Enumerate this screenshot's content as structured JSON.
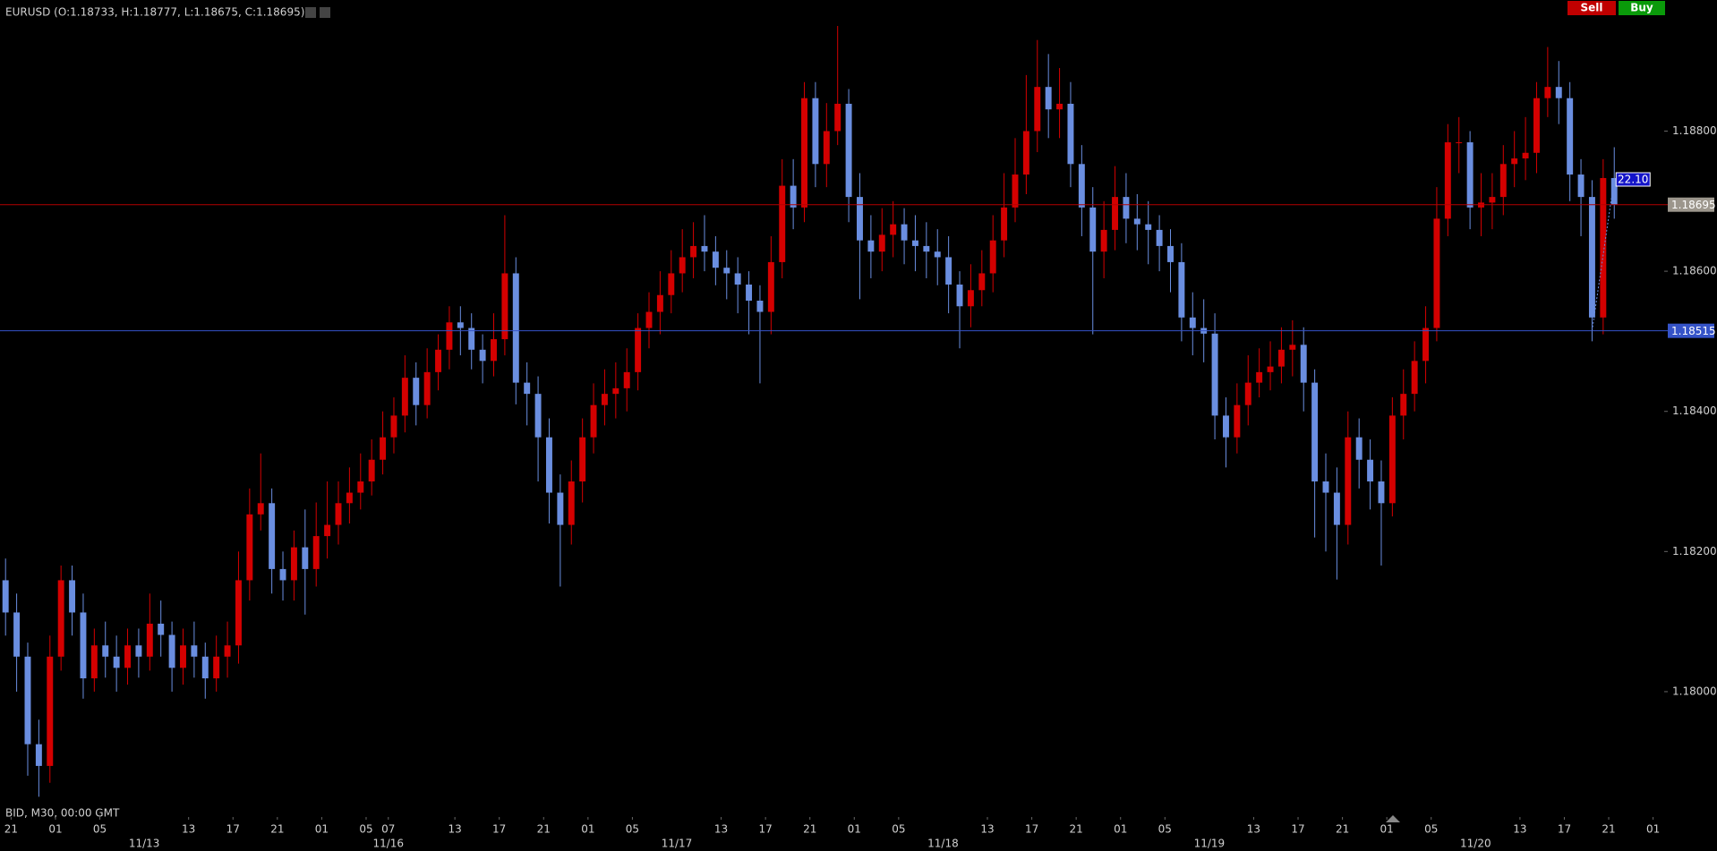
{
  "toolbar": {
    "buttons": [
      "Sell",
      "Buy"
    ]
  },
  "footer": "BID, M30, 00:00 GMT",
  "chart_data": {
    "type": "candlestick",
    "title": "EURUSD (O:1.18733, H:1.18777, L:1.18675, C:1.18695)",
    "up_color": "#d40000",
    "down_color": "#6a8ee0",
    "open": [
      1.18159,
      1.18113,
      1.1805,
      1.17925,
      1.17894,
      1.1805,
      1.18159,
      1.18113,
      1.18019,
      1.18066,
      1.1805,
      1.18034,
      1.18066,
      1.1805,
      1.18097,
      1.18081,
      1.18034,
      1.18066,
      1.1805,
      1.18019,
      1.1805,
      1.18066,
      1.18159,
      1.18253,
      1.18269,
      1.18175,
      1.18159,
      1.18206,
      1.18175,
      1.18222,
      1.18238,
      1.18269,
      1.18284,
      1.183,
      1.18331,
      1.18363,
      1.18394,
      1.18448,
      1.18409,
      1.18456,
      1.18488,
      1.18527,
      1.18519,
      1.18488,
      1.18472,
      1.18503,
      1.18597,
      1.18441,
      1.18425,
      1.18363,
      1.18284,
      1.18238,
      1.183,
      1.18363,
      1.18409,
      1.18425,
      1.18433,
      1.18456,
      1.18519,
      1.18542,
      1.18566,
      1.18597,
      1.1862,
      1.18636,
      1.18628,
      1.18605,
      1.18597,
      1.18581,
      1.18558,
      1.18542,
      1.18613,
      1.18722,
      1.18691,
      1.18847,
      1.18753,
      1.188,
      1.18839,
      1.18706,
      1.18644,
      1.18628,
      1.18652,
      1.18667,
      1.18644,
      1.18636,
      1.18628,
      1.1862,
      1.18581,
      1.1855,
      1.18573,
      1.18597,
      1.18644,
      1.18691,
      1.18738,
      1.188,
      1.18863,
      1.18831,
      1.18839,
      1.18753,
      1.18691,
      1.18628,
      1.18659,
      1.18706,
      1.18675,
      1.18667,
      1.18659,
      1.18636,
      1.18613,
      1.18534,
      1.18519,
      1.18511,
      1.18394,
      1.18363,
      1.18409,
      1.18441,
      1.18456,
      1.18464,
      1.18488,
      1.18495,
      1.18441,
      1.183,
      1.18284,
      1.18238,
      1.18363,
      1.18331,
      1.183,
      1.18269,
      1.18394,
      1.18425,
      1.18472,
      1.18519,
      1.18675,
      1.18784,
      1.18784,
      1.18691,
      1.18698,
      1.18706,
      1.18753,
      1.18761,
      1.18769,
      1.18847,
      1.18863,
      1.18847,
      1.18738,
      1.18706,
      1.18534,
      1.18733
    ],
    "high": [
      1.1819,
      1.1814,
      1.1807,
      1.1796,
      1.1808,
      1.1818,
      1.1818,
      1.1814,
      1.1809,
      1.181,
      1.1808,
      1.1809,
      1.1809,
      1.1814,
      1.1813,
      1.181,
      1.1809,
      1.181,
      1.1807,
      1.1808,
      1.181,
      1.182,
      1.1829,
      1.1834,
      1.1829,
      1.182,
      1.1823,
      1.1826,
      1.1827,
      1.183,
      1.183,
      1.1832,
      1.1834,
      1.1836,
      1.184,
      1.1842,
      1.1848,
      1.1847,
      1.1849,
      1.1851,
      1.1855,
      1.1855,
      1.1854,
      1.1851,
      1.1854,
      1.1868,
      1.1862,
      1.1847,
      1.1845,
      1.1839,
      1.1831,
      1.1833,
      1.1839,
      1.1844,
      1.1846,
      1.1847,
      1.1849,
      1.1854,
      1.1857,
      1.186,
      1.1863,
      1.1866,
      1.1867,
      1.1868,
      1.1865,
      1.1863,
      1.1862,
      1.186,
      1.1858,
      1.1865,
      1.1876,
      1.1876,
      1.1887,
      1.1887,
      1.1884,
      1.1895,
      1.1886,
      1.1874,
      1.1868,
      1.1869,
      1.187,
      1.1869,
      1.1868,
      1.1867,
      1.1866,
      1.1865,
      1.186,
      1.1861,
      1.1863,
      1.1868,
      1.1874,
      1.1879,
      1.1888,
      1.1893,
      1.1891,
      1.1889,
      1.1887,
      1.1878,
      1.1872,
      1.187,
      1.1875,
      1.1874,
      1.1871,
      1.187,
      1.1868,
      1.1866,
      1.1864,
      1.1857,
      1.1856,
      1.1854,
      1.1842,
      1.1844,
      1.1848,
      1.1849,
      1.185,
      1.1852,
      1.1853,
      1.1852,
      1.1846,
      1.1834,
      1.1832,
      1.184,
      1.1839,
      1.1836,
      1.1833,
      1.1842,
      1.1846,
      1.185,
      1.1855,
      1.1872,
      1.1881,
      1.1882,
      1.188,
      1.1874,
      1.1874,
      1.1878,
      1.188,
      1.1882,
      1.1887,
      1.1892,
      1.189,
      1.1887,
      1.1876,
      1.1873,
      1.1876,
      1.18777
    ],
    "low": [
      1.1808,
      1.18,
      1.1788,
      1.1785,
      1.1787,
      1.1803,
      1.1808,
      1.1799,
      1.18,
      1.1802,
      1.18,
      1.1801,
      1.1802,
      1.1803,
      1.1805,
      1.18,
      1.1801,
      1.1802,
      1.1799,
      1.18,
      1.1802,
      1.1804,
      1.1813,
      1.1823,
      1.1814,
      1.1813,
      1.1813,
      1.1811,
      1.1815,
      1.1819,
      1.1821,
      1.1824,
      1.1826,
      1.1828,
      1.1831,
      1.1834,
      1.1837,
      1.1838,
      1.1839,
      1.1843,
      1.1846,
      1.1848,
      1.1846,
      1.1844,
      1.1845,
      1.1848,
      1.1841,
      1.1838,
      1.183,
      1.1824,
      1.1815,
      1.1821,
      1.1827,
      1.1834,
      1.1838,
      1.1839,
      1.184,
      1.1843,
      1.1849,
      1.1851,
      1.1854,
      1.1857,
      1.1859,
      1.186,
      1.1858,
      1.1856,
      1.1854,
      1.1851,
      1.1844,
      1.1851,
      1.1859,
      1.1866,
      1.1867,
      1.1872,
      1.1872,
      1.1878,
      1.1867,
      1.1856,
      1.1859,
      1.186,
      1.1862,
      1.1861,
      1.186,
      1.1859,
      1.1858,
      1.1854,
      1.1849,
      1.1852,
      1.1855,
      1.1857,
      1.1862,
      1.1867,
      1.1871,
      1.1877,
      1.1879,
      1.1879,
      1.1872,
      1.1865,
      1.1851,
      1.1859,
      1.1863,
      1.1864,
      1.1863,
      1.1861,
      1.186,
      1.1857,
      1.185,
      1.1848,
      1.1847,
      1.1836,
      1.1832,
      1.1834,
      1.1838,
      1.1842,
      1.1843,
      1.1844,
      1.1845,
      1.184,
      1.1822,
      1.182,
      1.1816,
      1.1821,
      1.1829,
      1.1826,
      1.1818,
      1.1825,
      1.1836,
      1.184,
      1.1844,
      1.185,
      1.1865,
      1.1874,
      1.1866,
      1.1865,
      1.1866,
      1.1868,
      1.1872,
      1.1873,
      1.1874,
      1.1882,
      1.1881,
      1.187,
      1.1865,
      1.185,
      1.1851,
      1.18675
    ],
    "close": [
      1.18113,
      1.1805,
      1.17925,
      1.17894,
      1.1805,
      1.18159,
      1.18113,
      1.18019,
      1.18066,
      1.1805,
      1.18034,
      1.18066,
      1.1805,
      1.18097,
      1.18081,
      1.18034,
      1.18066,
      1.1805,
      1.18019,
      1.1805,
      1.18066,
      1.18159,
      1.18253,
      1.18269,
      1.18175,
      1.18159,
      1.18206,
      1.18175,
      1.18222,
      1.18238,
      1.18269,
      1.18284,
      1.183,
      1.18331,
      1.18363,
      1.18394,
      1.18448,
      1.18409,
      1.18456,
      1.18488,
      1.18527,
      1.18519,
      1.18488,
      1.18472,
      1.18503,
      1.18597,
      1.18441,
      1.18425,
      1.18363,
      1.18284,
      1.18238,
      1.183,
      1.18363,
      1.18409,
      1.18425,
      1.18433,
      1.18456,
      1.18519,
      1.18542,
      1.18566,
      1.18597,
      1.1862,
      1.18636,
      1.18628,
      1.18605,
      1.18597,
      1.18581,
      1.18558,
      1.18542,
      1.18613,
      1.18722,
      1.18691,
      1.18847,
      1.18753,
      1.188,
      1.18839,
      1.18706,
      1.18644,
      1.18628,
      1.18652,
      1.18667,
      1.18644,
      1.18636,
      1.18628,
      1.1862,
      1.18581,
      1.1855,
      1.18573,
      1.18597,
      1.18644,
      1.18691,
      1.18738,
      1.188,
      1.18863,
      1.18831,
      1.18839,
      1.18753,
      1.18691,
      1.18628,
      1.18659,
      1.18706,
      1.18675,
      1.18667,
      1.18659,
      1.18636,
      1.18613,
      1.18534,
      1.18519,
      1.18511,
      1.18394,
      1.18363,
      1.18409,
      1.18441,
      1.18456,
      1.18464,
      1.18488,
      1.18495,
      1.18441,
      1.183,
      1.18284,
      1.18238,
      1.18363,
      1.18331,
      1.183,
      1.18269,
      1.18394,
      1.18425,
      1.18472,
      1.18519,
      1.18675,
      1.18784,
      1.18784,
      1.18691,
      1.18698,
      1.18706,
      1.18753,
      1.18761,
      1.18769,
      1.18847,
      1.18863,
      1.18847,
      1.18738,
      1.18706,
      1.18534,
      1.18733,
      1.18695
    ],
    "xlim": [
      0,
      150
    ],
    "xticks": [
      {
        "value": 1,
        "label": "21"
      },
      {
        "value": 5,
        "label": "01"
      },
      {
        "value": 9,
        "label": "05"
      },
      {
        "value": 17,
        "label": "13"
      },
      {
        "value": 21,
        "label": "17"
      },
      {
        "value": 25,
        "label": "21"
      },
      {
        "value": 29,
        "label": "01"
      },
      {
        "value": 33,
        "label": "05"
      },
      {
        "value": 35,
        "label": "07"
      },
      {
        "value": 41,
        "label": "13"
      },
      {
        "value": 45,
        "label": "17"
      },
      {
        "value": 49,
        "label": "21"
      },
      {
        "value": 53,
        "label": "01"
      },
      {
        "value": 57,
        "label": "05"
      },
      {
        "value": 65,
        "label": "13"
      },
      {
        "value": 69,
        "label": "17"
      },
      {
        "value": 73,
        "label": "21"
      },
      {
        "value": 77,
        "label": "01"
      },
      {
        "value": 81,
        "label": "05"
      },
      {
        "value": 89,
        "label": "13"
      },
      {
        "value": 93,
        "label": "17"
      },
      {
        "value": 97,
        "label": "21"
      },
      {
        "value": 101,
        "label": "01"
      },
      {
        "value": 105,
        "label": "05"
      },
      {
        "value": 113,
        "label": "13"
      },
      {
        "value": 117,
        "label": "17"
      },
      {
        "value": 121,
        "label": "21"
      },
      {
        "value": 125,
        "label": "01"
      },
      {
        "value": 129,
        "label": "05"
      },
      {
        "value": 137,
        "label": "13"
      },
      {
        "value": 141,
        "label": "17"
      },
      {
        "value": 145,
        "label": "21"
      },
      {
        "value": 149,
        "label": "01"
      }
    ],
    "date_ticks": [
      {
        "value": 13,
        "label": "11/13"
      },
      {
        "value": 35,
        "label": "11/16"
      },
      {
        "value": 61,
        "label": "11/17"
      },
      {
        "value": 85,
        "label": "11/18"
      },
      {
        "value": 109,
        "label": "11/19"
      },
      {
        "value": 133,
        "label": "11/20"
      }
    ],
    "ylim": [
      1.17839,
      1.18959
    ],
    "yticks": [
      {
        "value": 1.18,
        "label": "1.18000"
      },
      {
        "value": 1.182,
        "label": "1.18200"
      },
      {
        "value": 1.184,
        "label": "1.18400"
      },
      {
        "value": 1.186,
        "label": "1.18600"
      },
      {
        "value": 1.188,
        "label": "1.18800"
      }
    ],
    "price_lines": [
      {
        "value": 1.18695,
        "label": "1.18695",
        "color": "#b40000",
        "label_bg": "#9c968c"
      },
      {
        "value": 1.18515,
        "label": "1.18515",
        "color": "#3553c8",
        "label_bg": "#3553c8"
      }
    ],
    "annotation": "22.10"
  }
}
